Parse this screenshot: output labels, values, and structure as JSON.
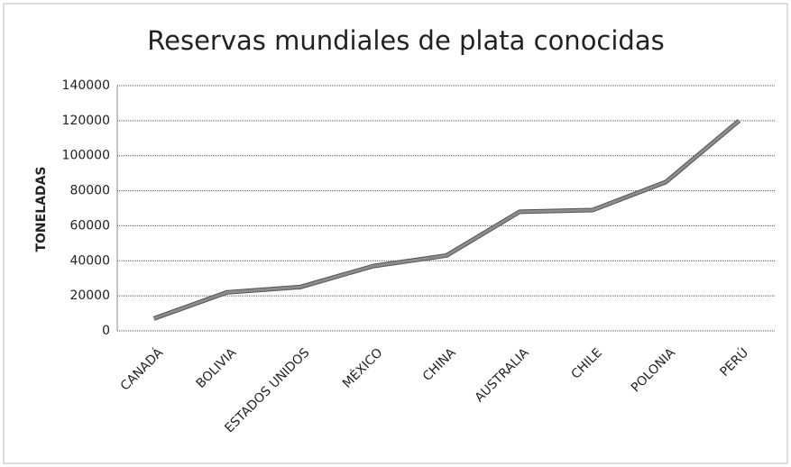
{
  "chart_data": {
    "type": "line",
    "title": "Reservas mundiales de plata conocidas",
    "y_label": "TONELADAS",
    "categories": [
      "CANADÁ",
      "BOLIVIA",
      "ESTADOS UNIDOS",
      "MÉXICO",
      "CHINA",
      "AUSTRALIA",
      "CHILE",
      "POLONIA",
      "PERÚ"
    ],
    "values": [
      7000,
      22000,
      25000,
      37000,
      43000,
      68000,
      69000,
      85000,
      120000
    ],
    "color": "#8c8c8c",
    "ylim": [
      0,
      140000
    ],
    "yticks": [
      0,
      20000,
      40000,
      60000,
      80000,
      100000,
      120000,
      140000
    ],
    "grid": true
  }
}
